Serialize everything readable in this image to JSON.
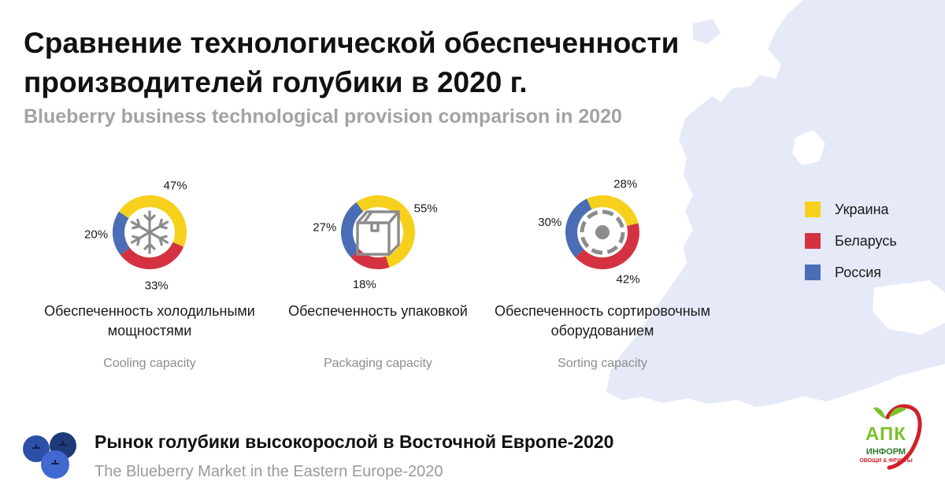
{
  "title": "Сравнение технологической обеспеченности производителей голубики в 2020 г.",
  "subtitle": "Blueberry business technological provision comparison in 2020",
  "colors": {
    "ukraine": "#f7d01c",
    "belarus": "#d43241",
    "russia": "#4a6db5",
    "map": "#e5e9f8"
  },
  "legend": [
    {
      "label": "Украина",
      "color": "#f7d01c"
    },
    {
      "label": "Беларусь",
      "color": "#d43241"
    },
    {
      "label": "Россия",
      "color": "#4a6db5"
    }
  ],
  "chart_data": [
    {
      "type": "pie",
      "variant": "donut",
      "title": "Обеспеченность холодильными мощностями",
      "subtitle": "Cooling capacity",
      "icon": "snowflake-icon",
      "series": [
        {
          "name": "Украина",
          "value": 47,
          "label": "47%"
        },
        {
          "name": "Беларусь",
          "value": 33,
          "label": "33%"
        },
        {
          "name": "Россия",
          "value": 20,
          "label": "20%"
        }
      ]
    },
    {
      "type": "pie",
      "variant": "donut",
      "title": "Обеспеченность упаковкой",
      "subtitle": "Packaging capacity",
      "icon": "box-icon",
      "series": [
        {
          "name": "Украина",
          "value": 55,
          "label": "55%"
        },
        {
          "name": "Беларусь",
          "value": 18,
          "label": "18%"
        },
        {
          "name": "Россия",
          "value": 27,
          "label": "27%"
        }
      ]
    },
    {
      "type": "pie",
      "variant": "donut",
      "title": "Обеспеченность сортировочным оборудованием",
      "subtitle": "Sorting capacity",
      "icon": "sorting-icon",
      "series": [
        {
          "name": "Украина",
          "value": 28,
          "label": "28%"
        },
        {
          "name": "Беларусь",
          "value": 42,
          "label": "42%"
        },
        {
          "name": "Россия",
          "value": 30,
          "label": "30%"
        }
      ]
    }
  ],
  "footer": {
    "title": "Рынок голубики высокорослой в Восточной Европе-2020",
    "subtitle": "The Blueberry Market in the Eastern Europe-2020"
  },
  "logo": {
    "main": "АПК",
    "line2": "ИНФОРМ",
    "line3": "ОВОЩИ & ФРУКТЫ"
  }
}
